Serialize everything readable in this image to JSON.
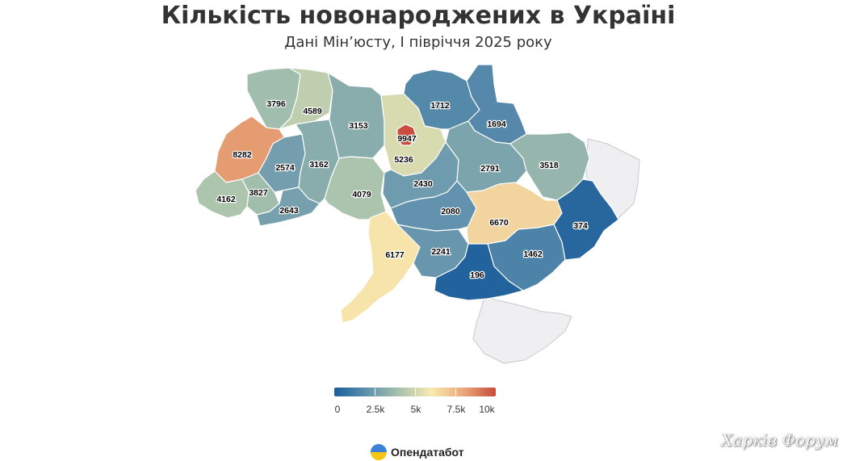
{
  "header": {
    "title": "Кількість новонароджених в Україні",
    "subtitle": "Дані Мін’юсту, І півріччя 2025 року"
  },
  "chart_data": {
    "type": "choropleth",
    "value_range": [
      0,
      10000
    ],
    "regions": [
      {
        "name": "Volyn",
        "value": 3796
      },
      {
        "name": "Rivne",
        "value": 4589
      },
      {
        "name": "Lviv",
        "value": 8282
      },
      {
        "name": "Zakarpattia",
        "value": 4162
      },
      {
        "name": "Ivano-Frankivsk",
        "value": 3827
      },
      {
        "name": "Ternopil",
        "value": 2574
      },
      {
        "name": "Chernivtsi",
        "value": 2643
      },
      {
        "name": "Khmelnytskyi",
        "value": 3162
      },
      {
        "name": "Zhytomyr",
        "value": 3153
      },
      {
        "name": "Vinnytsia",
        "value": 4079
      },
      {
        "name": "Kyiv City",
        "value": 9947
      },
      {
        "name": "Kyiv Oblast",
        "value": 5236
      },
      {
        "name": "Chernihiv",
        "value": 1712
      },
      {
        "name": "Sumy",
        "value": 1694
      },
      {
        "name": "Cherkasy",
        "value": 2430
      },
      {
        "name": "Poltava",
        "value": 2791
      },
      {
        "name": "Kharkiv",
        "value": 3518
      },
      {
        "name": "Kirovohrad",
        "value": 2080
      },
      {
        "name": "Dnipropetrovsk",
        "value": 6670
      },
      {
        "name": "Donetsk",
        "value": 374
      },
      {
        "name": "Odesa",
        "value": 6177
      },
      {
        "name": "Mykolaiv",
        "value": 2241
      },
      {
        "name": "Zaporizhzhia",
        "value": 1462
      },
      {
        "name": "Kherson",
        "value": 196
      }
    ]
  },
  "legend": {
    "stops": [
      "#1b5e9b",
      "#5f90ad",
      "#a7c2ad",
      "#f7eab0",
      "#e9a979",
      "#c74a3b"
    ],
    "ticks": [
      "0",
      "2.5k",
      "5k",
      "7.5k",
      "10k"
    ]
  },
  "footer": {
    "brand": "Опендатабот",
    "watermark": "Харків Форум"
  }
}
